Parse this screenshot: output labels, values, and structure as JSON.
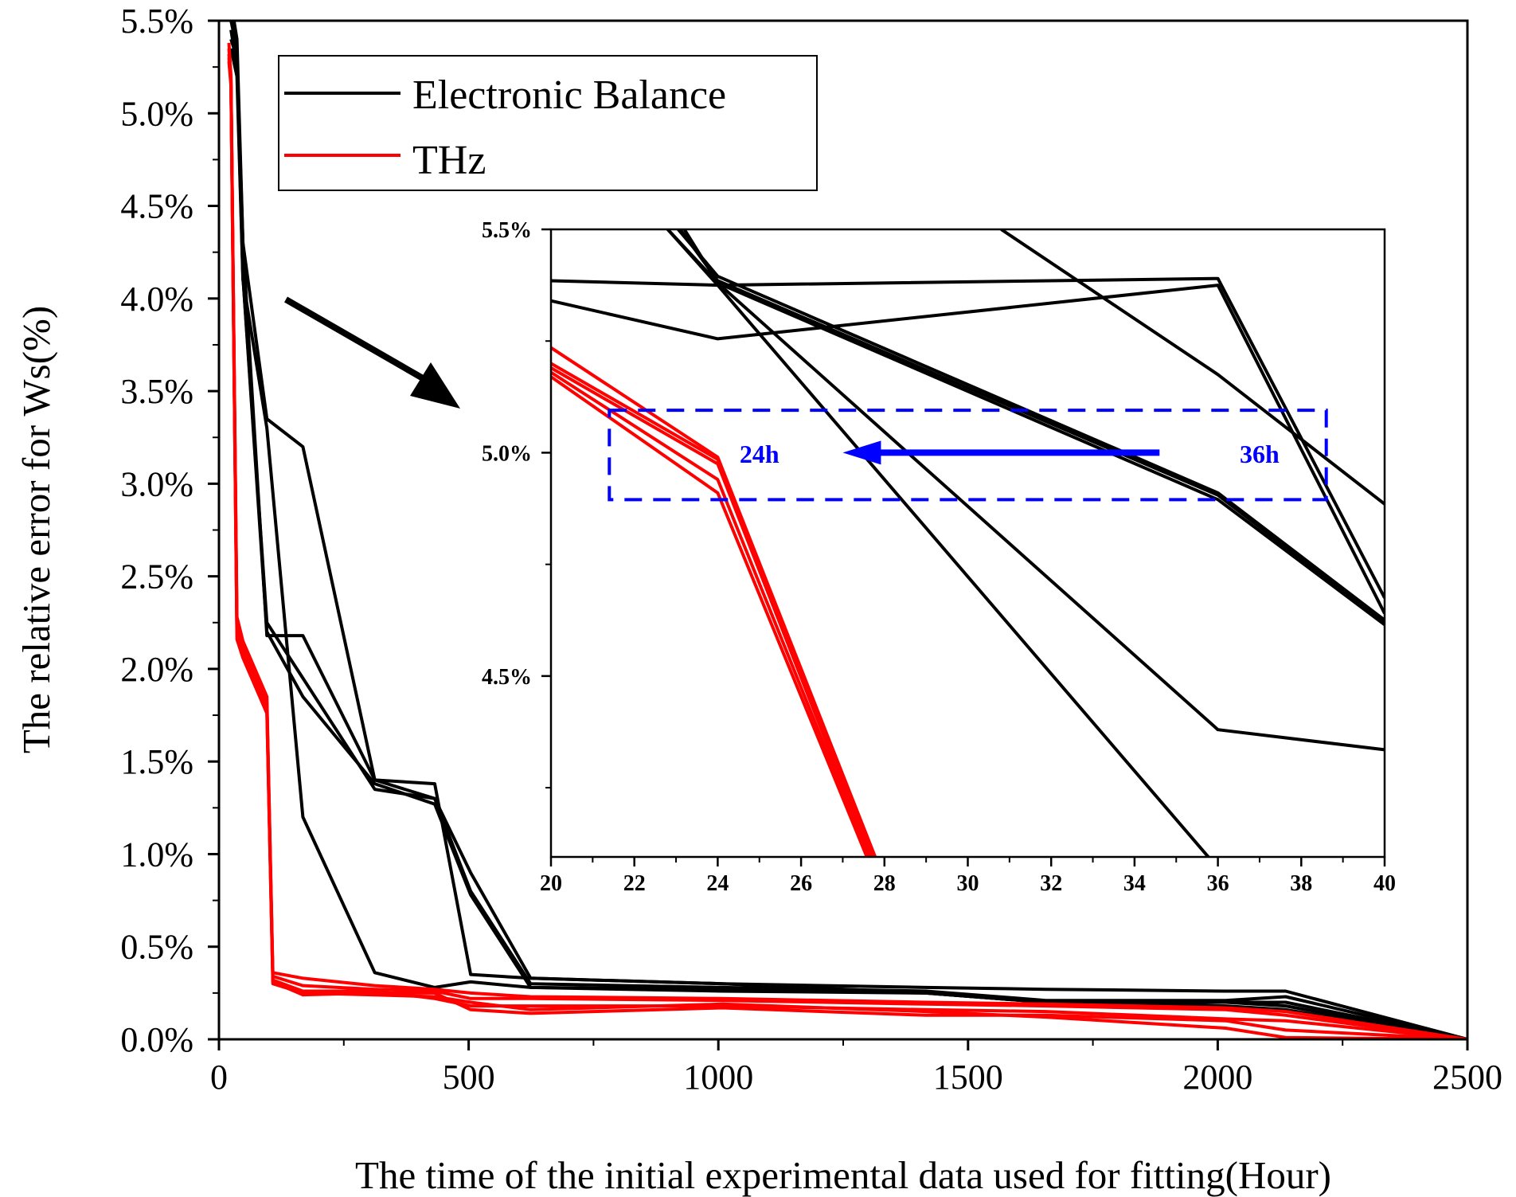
{
  "chart_data": [
    {
      "type": "line",
      "role": "main",
      "title": "",
      "xlabel": "The time of the initial experimental data used for fitting(Hour)",
      "ylabel": "The relative error for Ws(%)",
      "xlim": [
        0,
        2500
      ],
      "ylim": [
        0,
        5.5
      ],
      "xticks": [
        0,
        500,
        1000,
        1500,
        2000,
        2500
      ],
      "xtick_labels": [
        "0",
        "500",
        "1000",
        "1500",
        "2000",
        "2500"
      ],
      "yticks": [
        0,
        0.5,
        1.0,
        1.5,
        2.0,
        2.5,
        3.0,
        3.5,
        4.0,
        4.5,
        5.0,
        5.5
      ],
      "ytick_labels": [
        "0.0%",
        "0.5%",
        "1.0%",
        "1.5%",
        "2.0%",
        "2.5%",
        "3.0%",
        "3.5%",
        "4.0%",
        "4.5%",
        "5.0%",
        "5.5%"
      ],
      "grid": false,
      "legend": {
        "position": "top-left",
        "entries": [
          {
            "label": "Electronic Balance",
            "color": "#000000"
          },
          {
            "label": "THz",
            "color": "#ff0000"
          }
        ]
      },
      "series": [
        {
          "name": "Electronic Balance",
          "color": "#000000",
          "x": [
            24,
            36,
            48,
            96,
            168,
            312,
            432,
            504,
            624,
            1008,
            1416,
            1656,
            2016,
            2136,
            2500
          ],
          "y": [
            5.6,
            5.4,
            4.3,
            3.35,
            3.2,
            1.4,
            1.3,
            0.9,
            0.33,
            0.3,
            0.28,
            0.27,
            0.26,
            0.26,
            0.0
          ]
        },
        {
          "name": "Electronic Balance",
          "color": "#000000",
          "x": [
            24,
            36,
            48,
            96,
            168,
            312,
            432,
            504,
            624,
            1008,
            1416,
            1656,
            2016,
            2136,
            2500
          ],
          "y": [
            5.5,
            5.35,
            4.12,
            2.25,
            1.95,
            1.35,
            1.3,
            0.8,
            0.3,
            0.28,
            0.26,
            0.21,
            0.21,
            0.23,
            0.0
          ]
        },
        {
          "name": "Electronic Balance",
          "color": "#000000",
          "x": [
            24,
            36,
            48,
            96,
            168,
            312,
            432,
            504,
            624,
            1008,
            1416,
            1656,
            2016,
            2136,
            2500
          ],
          "y": [
            5.45,
            5.25,
            4.12,
            2.2,
            1.85,
            1.38,
            1.27,
            0.78,
            0.28,
            0.26,
            0.25,
            0.2,
            0.2,
            0.2,
            0.0
          ]
        },
        {
          "name": "Electronic Balance",
          "color": "#000000",
          "x": [
            24,
            36,
            48,
            96,
            168,
            312,
            432,
            504,
            624,
            1008,
            1416,
            1656,
            2016,
            2136,
            2500
          ],
          "y": [
            5.4,
            5.3,
            4.3,
            2.18,
            2.18,
            1.4,
            1.38,
            0.35,
            0.33,
            0.3,
            0.25,
            0.2,
            0.2,
            0.18,
            0.0
          ]
        },
        {
          "name": "Electronic Balance",
          "color": "#000000",
          "x": [
            24,
            36,
            48,
            96,
            168,
            312,
            432,
            504,
            624,
            1008,
            1416,
            1656,
            2016,
            2136,
            2500
          ],
          "y": [
            5.35,
            5.2,
            4.1,
            3.3,
            1.2,
            0.36,
            0.28,
            0.31,
            0.28,
            0.27,
            0.25,
            0.2,
            0.18,
            0.16,
            0.0
          ]
        },
        {
          "name": "THz",
          "color": "#ff0000",
          "x": [
            20,
            24,
            36,
            48,
            96,
            108,
            168,
            312,
            432,
            504,
            624,
            1008,
            1416,
            1656,
            2016,
            2136,
            2500
          ],
          "y": [
            5.38,
            5.2,
            2.28,
            2.15,
            1.85,
            0.36,
            0.33,
            0.29,
            0.27,
            0.25,
            0.23,
            0.22,
            0.2,
            0.19,
            0.17,
            0.15,
            0.0
          ]
        },
        {
          "name": "THz",
          "color": "#ff0000",
          "x": [
            20,
            24,
            36,
            48,
            96,
            108,
            168,
            312,
            432,
            504,
            624,
            1008,
            1416,
            1656,
            2016,
            2136,
            2500
          ],
          "y": [
            5.35,
            5.18,
            2.24,
            2.12,
            1.82,
            0.34,
            0.29,
            0.27,
            0.26,
            0.22,
            0.22,
            0.21,
            0.19,
            0.18,
            0.16,
            0.13,
            0.0
          ]
        },
        {
          "name": "THz",
          "color": "#ff0000",
          "x": [
            20,
            24,
            36,
            48,
            96,
            108,
            168,
            312,
            432,
            504,
            624,
            1008,
            1416,
            1656,
            2016,
            2136,
            2500
          ],
          "y": [
            5.32,
            5.17,
            2.2,
            2.1,
            1.8,
            0.32,
            0.26,
            0.26,
            0.22,
            0.18,
            0.18,
            0.18,
            0.16,
            0.15,
            0.11,
            0.1,
            0.0
          ]
        },
        {
          "name": "THz",
          "color": "#ff0000",
          "x": [
            20,
            24,
            36,
            48,
            96,
            108,
            168,
            312,
            432,
            504,
            624,
            1008,
            1416,
            1656,
            2016,
            2136,
            2500
          ],
          "y": [
            5.3,
            5.16,
            2.18,
            2.08,
            1.78,
            0.31,
            0.24,
            0.25,
            0.25,
            0.16,
            0.14,
            0.17,
            0.13,
            0.13,
            0.1,
            0.05,
            0.0
          ]
        },
        {
          "name": "THz",
          "color": "#ff0000",
          "x": [
            20,
            24,
            36,
            48,
            96,
            108,
            168,
            312,
            432,
            504,
            624,
            1008,
            1416,
            1656,
            2016,
            2136,
            2500
          ],
          "y": [
            5.28,
            5.15,
            2.16,
            2.06,
            1.76,
            0.3,
            0.25,
            0.24,
            0.23,
            0.2,
            0.16,
            0.19,
            0.15,
            0.12,
            0.06,
            0.01,
            0.0
          ]
        }
      ],
      "annotations": [
        {
          "type": "arrow",
          "color": "#000000",
          "meaning": "points from main plot toward zoomed inset"
        }
      ]
    },
    {
      "type": "line",
      "role": "inset",
      "title": "",
      "xlabel": "",
      "ylabel": "",
      "xlim": [
        20,
        40
      ],
      "ylim": [
        4.095,
        5.5
      ],
      "xticks": [
        20,
        22,
        24,
        26,
        28,
        30,
        32,
        34,
        36,
        38,
        40
      ],
      "xtick_labels": [
        "20",
        "22",
        "24",
        "26",
        "28",
        "30",
        "32",
        "34",
        "36",
        "38",
        "40"
      ],
      "yticks": [
        4.5,
        5.0,
        5.5
      ],
      "ytick_labels": [
        "4.5%",
        "5.0%",
        "5.5%"
      ],
      "grid": false,
      "series": [
        {
          "name": "Electronic Balance",
          "color": "#000000",
          "x": [
            20,
            24,
            36,
            40
          ],
          "y": [
            5.385,
            5.375,
            5.39,
            4.675
          ]
        },
        {
          "name": "Electronic Balance",
          "color": "#000000",
          "x": [
            20,
            24,
            36,
            40
          ],
          "y": [
            5.34,
            5.255,
            5.375,
            4.64
          ]
        },
        {
          "name": "Electronic Balance",
          "color": "#000000",
          "x": [
            23.05,
            24,
            36,
            40
          ],
          "y": [
            5.5,
            5.395,
            4.91,
            4.625
          ]
        },
        {
          "name": "Electronic Balance",
          "color": "#000000",
          "x": [
            23.1,
            24,
            36,
            40
          ],
          "y": [
            5.5,
            5.385,
            4.905,
            4.62
          ]
        },
        {
          "name": "Electronic Balance",
          "color": "#000000",
          "x": [
            23.2,
            24,
            36,
            40
          ],
          "y": [
            5.5,
            5.38,
            4.895,
            4.615
          ]
        },
        {
          "name": "Electronic Balance",
          "color": "#000000",
          "x": [
            22.8,
            24,
            36,
            40
          ],
          "y": [
            5.5,
            5.38,
            4.38,
            4.335
          ]
        },
        {
          "name": "Electronic Balance",
          "color": "#000000",
          "x": [
            22.8,
            24,
            36,
            40
          ],
          "y": [
            5.5,
            5.375,
            4.07,
            4.065
          ]
        },
        {
          "name": "Electronic Balance",
          "color": "#000000",
          "x": [
            30.8,
            36,
            40
          ],
          "y": [
            5.5,
            5.175,
            4.885
          ]
        },
        {
          "name": "THz",
          "color": "#ff0000",
          "x": [
            20,
            24,
            27.8
          ],
          "y": [
            5.235,
            4.99,
            4.09
          ]
        },
        {
          "name": "THz",
          "color": "#ff0000",
          "x": [
            20,
            24,
            27.75
          ],
          "y": [
            5.2,
            4.985,
            4.09
          ]
        },
        {
          "name": "THz",
          "color": "#ff0000",
          "x": [
            20,
            24,
            27.7
          ],
          "y": [
            5.19,
            4.975,
            4.09
          ]
        },
        {
          "name": "THz",
          "color": "#ff0000",
          "x": [
            20,
            24,
            27.65
          ],
          "y": [
            5.18,
            4.94,
            4.09
          ]
        },
        {
          "name": "THz",
          "color": "#ff0000",
          "x": [
            20,
            24,
            27.6
          ],
          "y": [
            5.17,
            4.91,
            4.09
          ]
        }
      ],
      "annotations": [
        {
          "type": "dashed-box",
          "color": "#0000ff",
          "x_range": [
            21.4,
            38.6
          ],
          "y_range": [
            4.895,
            5.095
          ]
        },
        {
          "type": "arrow",
          "color": "#0000ff",
          "from_x": 34.6,
          "to_x": 27.0,
          "y": 5.0
        },
        {
          "type": "text",
          "text": "24h",
          "x": 25.0,
          "y": 4.985,
          "color": "#0000ff"
        },
        {
          "type": "text",
          "text": "36h",
          "x": 37.0,
          "y": 4.985,
          "color": "#0000ff"
        }
      ]
    }
  ]
}
